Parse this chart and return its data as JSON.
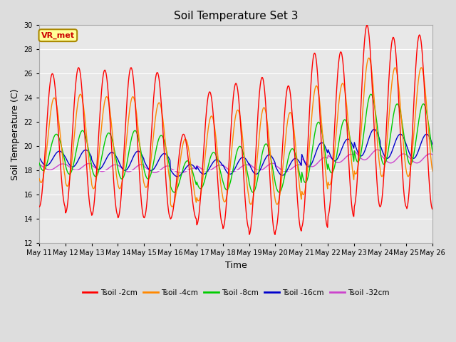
{
  "title": "Soil Temperature Set 3",
  "xlabel": "Time",
  "ylabel": "Soil Temperature (C)",
  "ylim": [
    12,
    30
  ],
  "yticks": [
    12,
    14,
    16,
    18,
    20,
    22,
    24,
    26,
    28,
    30
  ],
  "colors": {
    "Tsoil -2cm": "#ff0000",
    "Tsoil -4cm": "#ff8800",
    "Tsoil -8cm": "#00cc00",
    "Tsoil -16cm": "#0000cc",
    "Tsoil -32cm": "#cc44cc"
  },
  "legend_label": "VR_met",
  "legend_box_color": "#ffff99",
  "legend_box_edge": "#aa8800",
  "bg_color": "#dddddd",
  "plot_bg_color": "#e8e8e8",
  "n_days": 15,
  "pts_per_day": 48,
  "start_day": 11,
  "tick_every": 1,
  "amplitudes_2cm": [
    5.5,
    6.0,
    6.0,
    6.2,
    6.0,
    3.5,
    5.5,
    6.0,
    6.5,
    6.0,
    7.2,
    6.8,
    7.5,
    7.0,
    7.2
  ],
  "amplitudes_4cm": [
    3.5,
    3.8,
    3.8,
    3.8,
    3.5,
    2.8,
    3.5,
    3.8,
    4.0,
    3.8,
    4.5,
    4.2,
    4.8,
    4.5,
    4.5
  ],
  "amplitudes_8cm": [
    1.5,
    1.8,
    1.8,
    2.0,
    1.8,
    1.3,
    1.5,
    1.8,
    2.0,
    1.8,
    2.5,
    2.2,
    2.8,
    2.5,
    2.5
  ],
  "amplitudes_16cm": [
    0.6,
    0.7,
    0.7,
    0.8,
    0.7,
    0.5,
    0.6,
    0.7,
    0.8,
    0.7,
    1.0,
    0.9,
    1.1,
    1.0,
    1.0
  ],
  "amplitudes_32cm": [
    0.25,
    0.28,
    0.28,
    0.3,
    0.28,
    0.2,
    0.25,
    0.28,
    0.3,
    0.28,
    0.38,
    0.35,
    0.42,
    0.38,
    0.38
  ],
  "base_2cm": [
    20.5,
    20.5,
    20.3,
    20.3,
    20.1,
    17.5,
    19.0,
    19.2,
    19.2,
    19.0,
    20.5,
    21.0,
    22.5,
    22.0,
    22.0
  ],
  "base_4cm": [
    20.5,
    20.5,
    20.3,
    20.3,
    20.1,
    17.8,
    19.0,
    19.2,
    19.2,
    19.0,
    20.5,
    21.0,
    22.5,
    22.0,
    22.0
  ],
  "base_8cm": [
    19.5,
    19.5,
    19.3,
    19.3,
    19.1,
    17.5,
    18.0,
    18.2,
    18.2,
    18.0,
    19.5,
    20.0,
    21.5,
    21.0,
    21.0
  ],
  "base_16cm": [
    19.0,
    19.0,
    18.8,
    18.8,
    18.7,
    18.0,
    18.3,
    18.4,
    18.5,
    18.3,
    19.3,
    19.7,
    20.3,
    20.0,
    20.0
  ],
  "base_32cm": [
    18.3,
    18.3,
    18.2,
    18.2,
    18.1,
    18.0,
    18.2,
    18.2,
    18.3,
    18.2,
    18.7,
    19.0,
    19.3,
    19.0,
    19.0
  ],
  "phase_2cm": 0.0,
  "phase_4cm": 0.07,
  "phase_8cm": 0.15,
  "phase_16cm": 0.27,
  "phase_32cm": 0.4
}
